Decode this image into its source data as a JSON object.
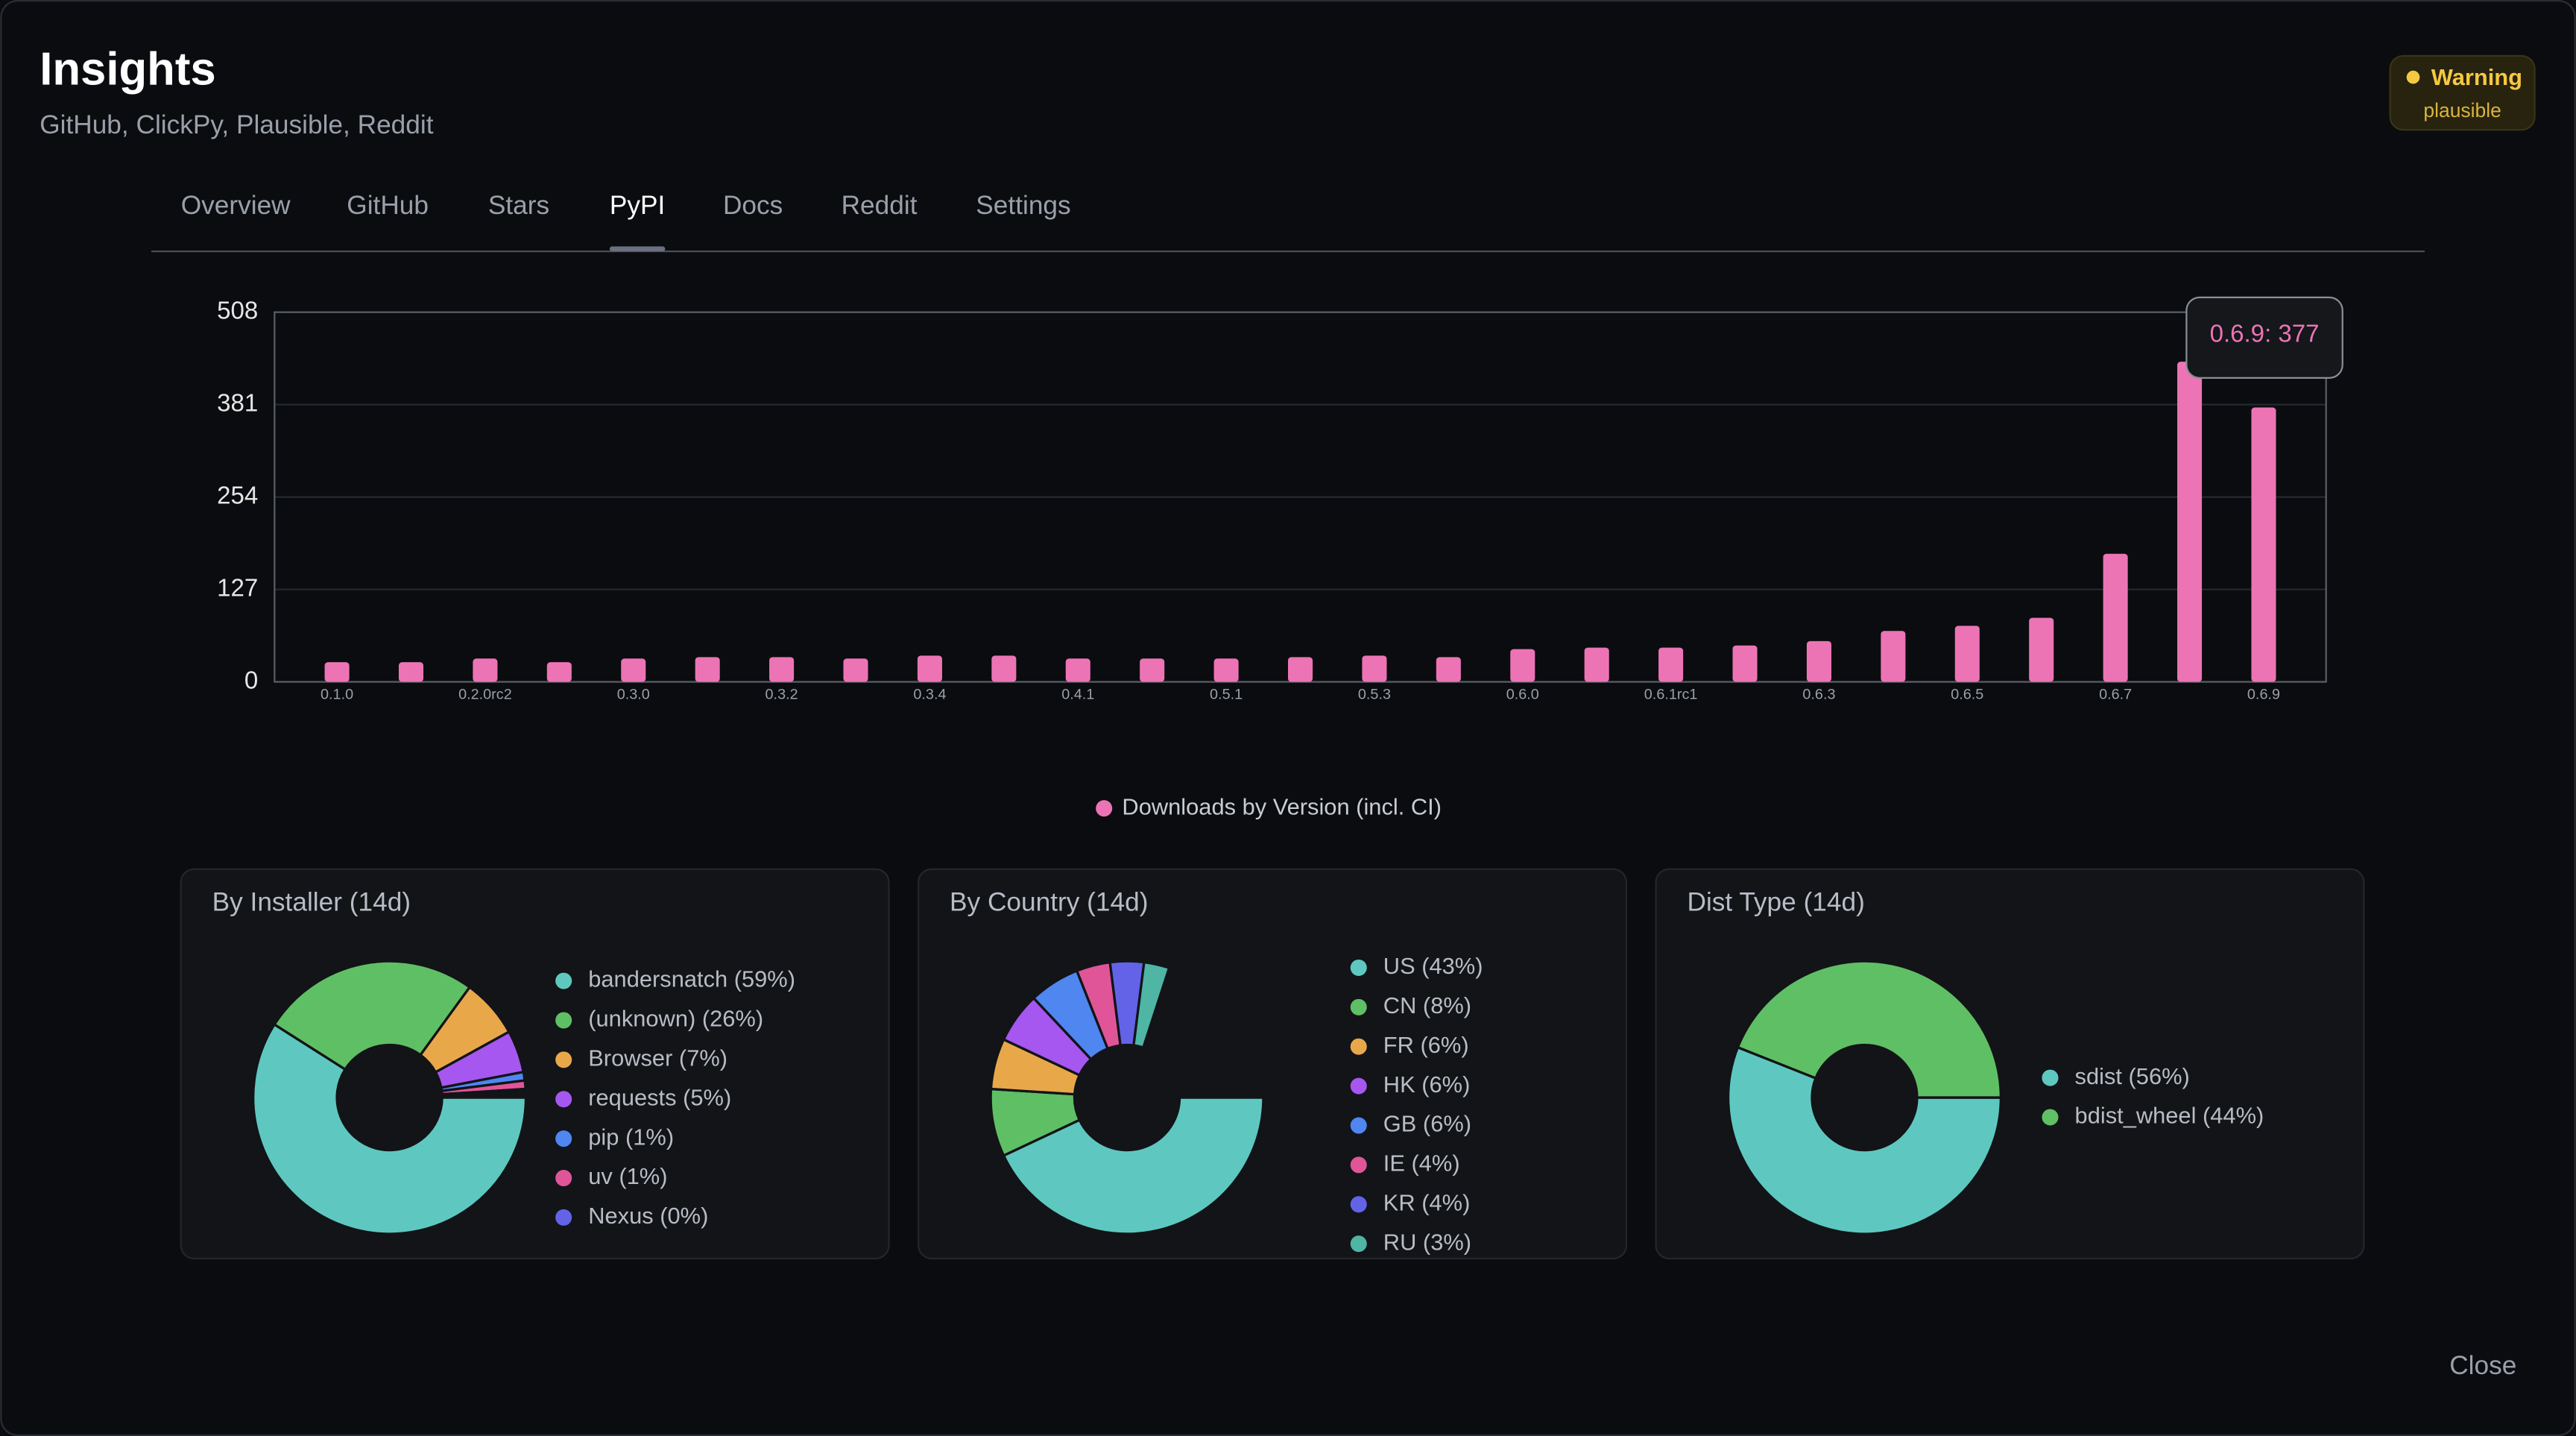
{
  "header": {
    "title": "Insights",
    "subtitle": "GitHub, ClickPy, Plausible, Reddit",
    "badge": {
      "title": "Warning",
      "detail": "plausible"
    }
  },
  "tabs": {
    "items": [
      "Overview",
      "GitHub",
      "Stars",
      "PyPI",
      "Docs",
      "Reddit",
      "Settings"
    ],
    "active": 3
  },
  "close": "Close",
  "chart_data": [
    {
      "type": "bar",
      "categories": [
        "0.1.0",
        null,
        "0.2.0rc2",
        null,
        "0.3.0",
        null,
        "0.3.2",
        null,
        "0.3.4",
        null,
        "0.4.1",
        null,
        "0.5.1",
        null,
        "0.5.3",
        null,
        "0.6.0",
        null,
        "0.6.1rc1",
        null,
        "0.6.3",
        null,
        "0.6.5",
        null,
        "0.6.7",
        null,
        "0.6.9"
      ],
      "series": [
        {
          "name": "Downloads by Version (incl. CI)",
          "color": "#ec74b5",
          "values": [
            27,
            27,
            32,
            27,
            32,
            34,
            34,
            32,
            36,
            36,
            32,
            32,
            32,
            34,
            36,
            34,
            45,
            47,
            47,
            50,
            56,
            70,
            77,
            88,
            176,
            440,
            377
          ]
        }
      ],
      "ylim": [
        0,
        508
      ],
      "yticks": [
        0,
        127,
        254,
        381,
        508
      ],
      "grid": true,
      "tooltip": "0.6.9: 377",
      "legend": "bottom"
    },
    {
      "type": "pie",
      "title": "By Installer (14d)",
      "categories": [
        "bandersnatch (59%)",
        "(unknown) (26%)",
        "Browser (7%)",
        "requests (5%)",
        "pip (1%)",
        "uv (1%)",
        "Nexus (0%)"
      ],
      "values": [
        59,
        26,
        7,
        5,
        1,
        1,
        0
      ],
      "colors": [
        "#5ec8c0",
        "#5fbf64",
        "#e8a84a",
        "#a657f0",
        "#4f86f0",
        "#e05598",
        "#6363e8"
      ]
    },
    {
      "type": "pie",
      "title": "By Country (14d)",
      "categories": [
        "US (43%)",
        "CN (8%)",
        "FR (6%)",
        "HK (6%)",
        "GB (6%)",
        "IE (4%)",
        "KR (4%)",
        "RU (3%)"
      ],
      "values": [
        43,
        8,
        6,
        6,
        6,
        4,
        4,
        3
      ],
      "colors": [
        "#5ec8c0",
        "#5fbf64",
        "#e8a84a",
        "#a657f0",
        "#4f86f0",
        "#e05598",
        "#6363e8",
        "#4fb5a5"
      ]
    },
    {
      "type": "pie",
      "title": "Dist Type (14d)",
      "categories": [
        "sdist (56%)",
        "bdist_wheel (44%)"
      ],
      "values": [
        56,
        44
      ],
      "colors": [
        "#5ec8c0",
        "#5fbf64"
      ]
    }
  ]
}
